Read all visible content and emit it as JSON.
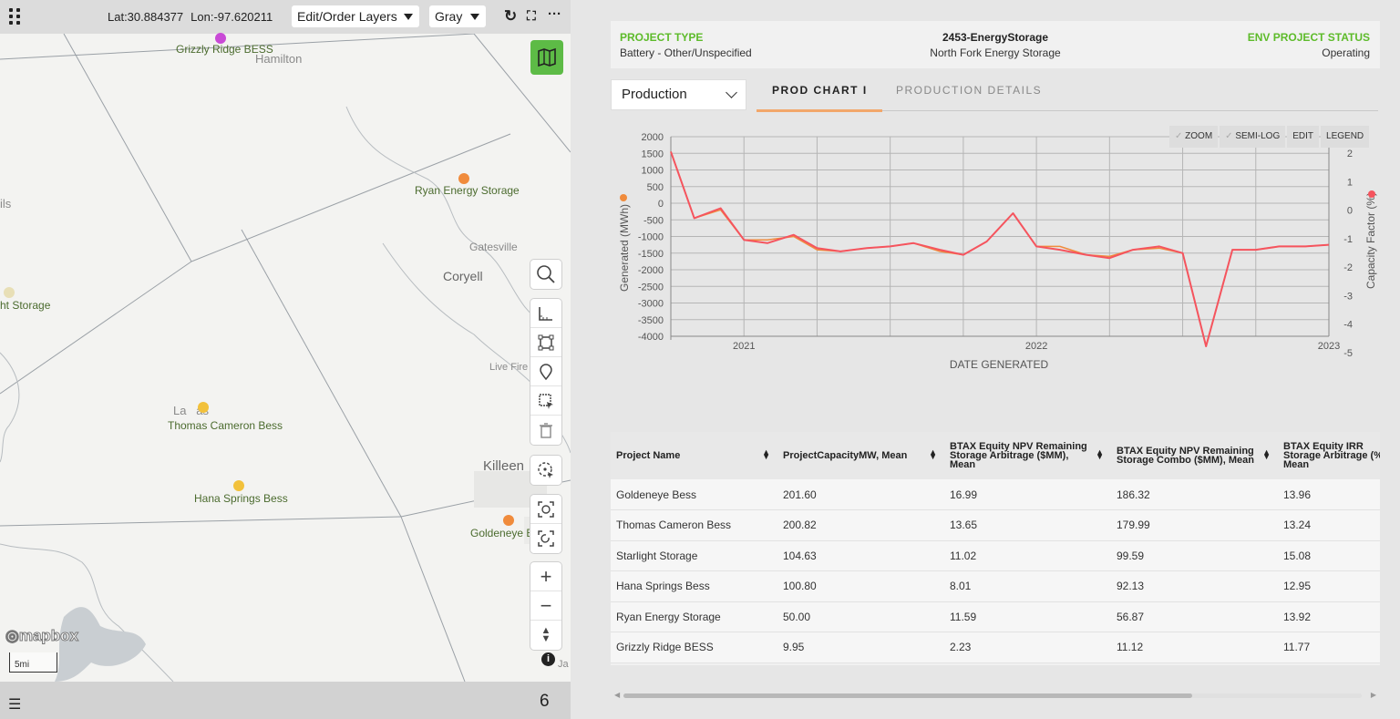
{
  "map": {
    "coords": {
      "lat": "Lat:30.884377",
      "lon": "Lon:-97.620211"
    },
    "layers_select": "Edit/Order Layers",
    "style_select": "Gray",
    "refresh_icon": "↻",
    "fullscreen_icon": "⛶",
    "more_icon": "···",
    "places": [
      {
        "label": "Grizzly Ridge BESS",
        "color": "#c94ad6"
      },
      {
        "label": "Ryan Energy Storage",
        "color": "#f08b3c"
      },
      {
        "label": "ht Storage",
        "color": "#e8dfb6"
      },
      {
        "label": "Thomas Cameron Bess",
        "color": "#f2c13b"
      },
      {
        "label": "Hana Springs Bess",
        "color": "#f2c13b"
      },
      {
        "label": "Goldeneye B",
        "color": "#f08b3c"
      }
    ],
    "towns": [
      "Hamilton",
      "Gatesville",
      "Coryell",
      "Live Fire",
      "Killeen",
      "ils",
      "La   as",
      "Ja"
    ],
    "scale_label": "5mi",
    "logo": "mapbox",
    "info_icon": "i",
    "result_count": "6",
    "list_icon": "☰"
  },
  "project": {
    "type_label": "PROJECT TYPE",
    "type_value": "Battery - Other/Unspecified",
    "id": "2453-EnergyStorage",
    "name": "North Fork Energy Storage",
    "status_label": "ENV PROJECT STATUS",
    "status_value": "Operating",
    "accent": "#5dbb2a"
  },
  "chart_controls": {
    "select_value": "Production",
    "tabs": [
      "PROD CHART I",
      "PRODUCTION DETAILS"
    ],
    "buttons": [
      "ZOOM",
      "SEMI-LOG",
      "EDIT",
      "LEGEND"
    ]
  },
  "chart_data": {
    "type": "line",
    "xlabel": "DATE GENERATED",
    "ylabel": "Generated (MWh)",
    "y2label": "Capacity Factor (%)",
    "ylim": [
      -4000,
      2000
    ],
    "y2lim": [
      -5,
      2
    ],
    "x_ticks": [
      "2021",
      "2022",
      "2023"
    ],
    "y_ticks": [
      2000,
      1500,
      1000,
      500,
      0,
      -500,
      -1000,
      -1500,
      -2000,
      -2500,
      -3000,
      -3500,
      -4000
    ],
    "y2_ticks": [
      2,
      1,
      0,
      -1,
      -2,
      -3,
      -4,
      -5
    ],
    "series": [
      {
        "color": "#f08b3c",
        "x": [
          2020.75,
          2020.83,
          2020.92,
          2021.0,
          2021.08,
          2021.17,
          2021.25,
          2021.33,
          2021.42,
          2021.5,
          2021.58,
          2021.67,
          2021.75,
          2021.83,
          2021.92,
          2022.0,
          2022.08,
          2022.17,
          2022.25,
          2022.33,
          2022.42,
          2022.5,
          2022.58,
          2022.67,
          2022.75,
          2022.83,
          2022.92,
          2023.0
        ],
        "values": [
          1550,
          -450,
          -200,
          -1100,
          -1100,
          -1000,
          -1400,
          -1450,
          -1350,
          -1300,
          -1200,
          -1450,
          -1550,
          -1150,
          -300,
          -1300,
          -1300,
          -1550,
          -1600,
          -1400,
          -1350,
          -1500,
          -4300,
          -1400,
          -1400,
          -1300,
          -1300,
          -1250
        ]
      },
      {
        "color": "#f5545e",
        "x": [
          2020.75,
          2020.83,
          2020.92,
          2021.0,
          2021.08,
          2021.17,
          2021.25,
          2021.33,
          2021.42,
          2021.5,
          2021.58,
          2021.67,
          2021.75,
          2021.83,
          2021.92,
          2022.0,
          2022.08,
          2022.17,
          2022.25,
          2022.33,
          2022.42,
          2022.5,
          2022.58,
          2022.67,
          2022.75,
          2022.83,
          2022.92,
          2023.0
        ],
        "values": [
          1550,
          -450,
          -150,
          -1100,
          -1200,
          -950,
          -1350,
          -1450,
          -1350,
          -1300,
          -1200,
          -1400,
          -1550,
          -1150,
          -300,
          -1300,
          -1400,
          -1550,
          -1650,
          -1400,
          -1300,
          -1500,
          -4300,
          -1400,
          -1400,
          -1300,
          -1300,
          -1250
        ]
      }
    ]
  },
  "table": {
    "columns": [
      "Project Name",
      "ProjectCapacityMW, Mean",
      "BTAX Equity NPV Remaining Storage Arbitrage ($MM), Mean",
      "BTAX Equity NPV Remaining Storage Combo ($MM), Mean",
      "BTAX Equity IRR Storage Arbitrage (%), Mean"
    ],
    "rows": [
      [
        "Goldeneye Bess",
        "201.60",
        "16.99",
        "186.32",
        "13.96"
      ],
      [
        "Thomas Cameron Bess",
        "200.82",
        "13.65",
        "179.99",
        "13.24"
      ],
      [
        "Starlight Storage",
        "104.63",
        "11.02",
        "99.59",
        "15.08"
      ],
      [
        "Hana Springs Bess",
        "100.80",
        "8.01",
        "92.13",
        "12.95"
      ],
      [
        "Ryan Energy Storage",
        "50.00",
        "11.59",
        "56.87",
        "13.92"
      ],
      [
        "Grizzly Ridge BESS",
        "9.95",
        "2.23",
        "11.12",
        "11.77"
      ]
    ]
  }
}
